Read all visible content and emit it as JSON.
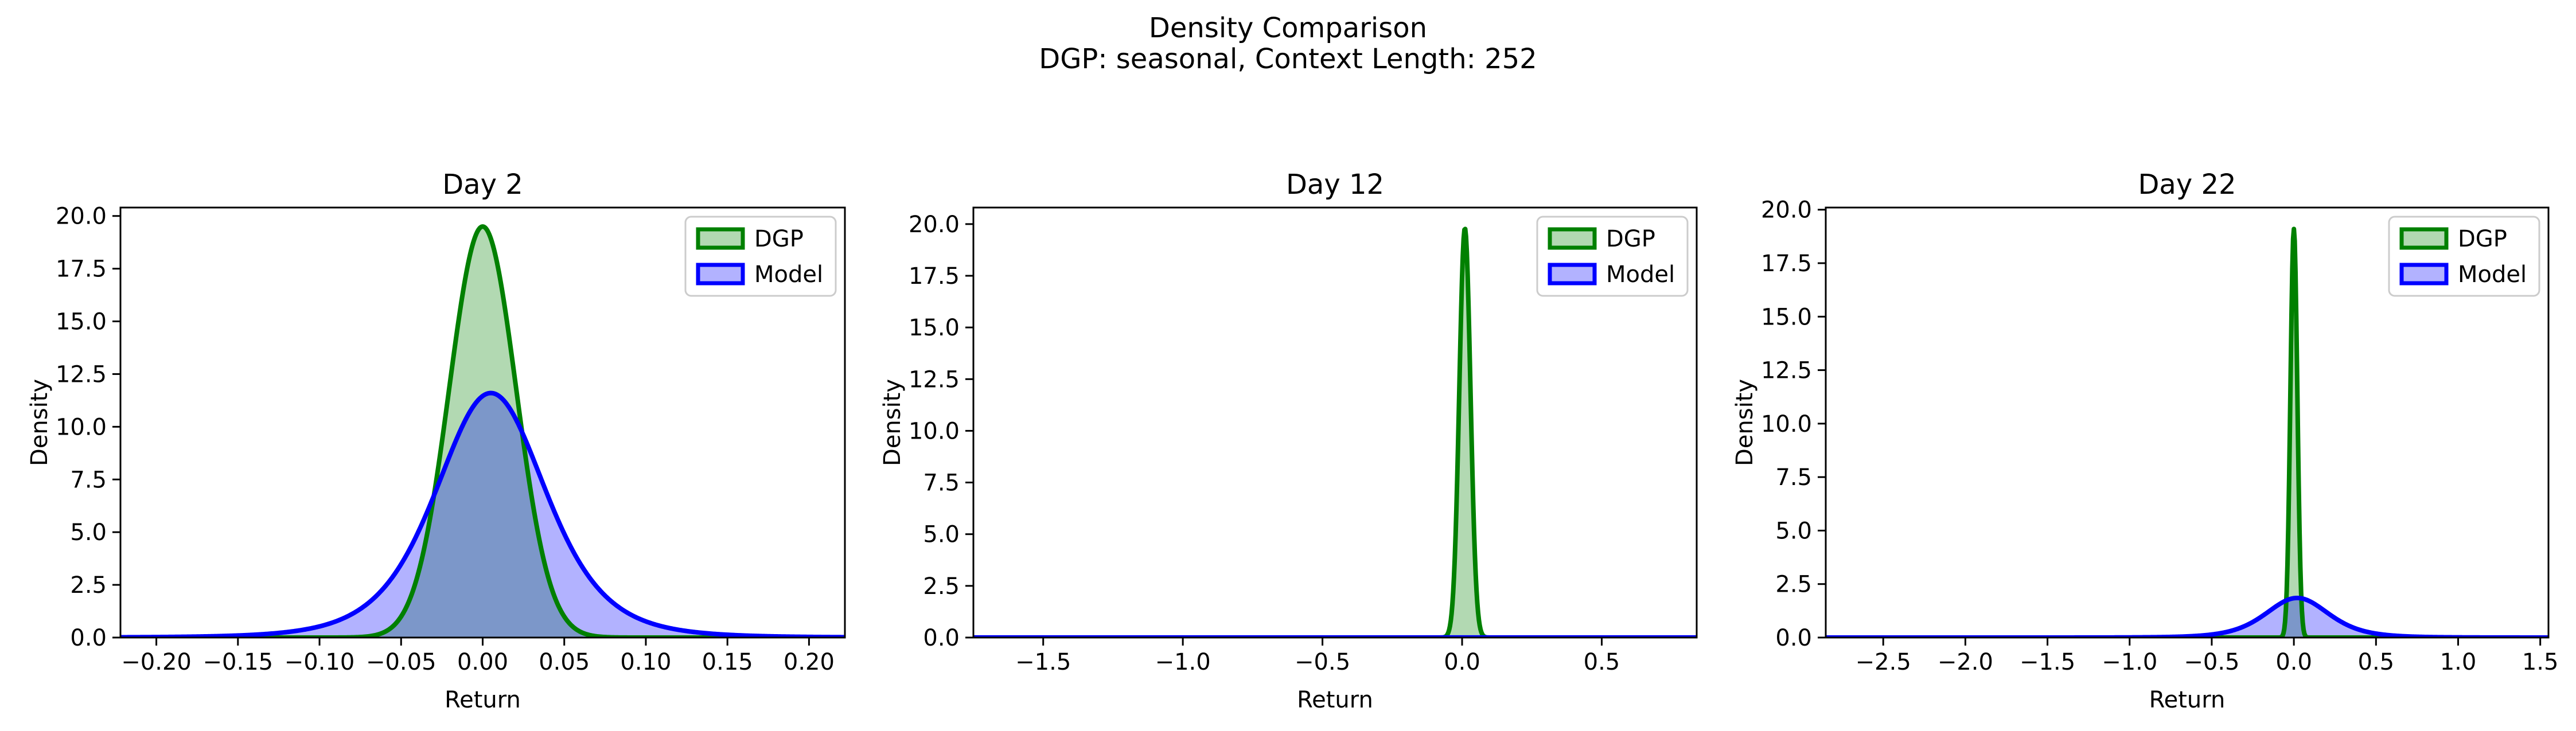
{
  "figure": {
    "title": "Density Comparison",
    "subtitle": "DGP: seasonal, Context Length: 252"
  },
  "colors": {
    "dgp_line": "#008000",
    "dgp_fill": "#b2d8b2",
    "model_line": "#0000ff",
    "model_fill": "#b2b2ff",
    "overlap_fill": "#7f99c8"
  },
  "chart_data": [
    {
      "type": "area",
      "title": "Day 2",
      "xlabel": "Return",
      "ylabel": "Density",
      "xlim": [
        -0.222,
        0.222
      ],
      "ylim": [
        0,
        20.4
      ],
      "xticks": [
        -0.2,
        -0.15,
        -0.1,
        -0.05,
        0.0,
        0.05,
        0.1,
        0.15,
        0.2
      ],
      "xtick_labels": [
        "−0.20",
        "−0.15",
        "−0.10",
        "−0.05",
        "0.00",
        "0.05",
        "0.10",
        "0.15",
        "0.20"
      ],
      "yticks": [
        0,
        2.5,
        5,
        7.5,
        10,
        12.5,
        15,
        17.5,
        20
      ],
      "ytick_labels": [
        "0.0",
        "2.5",
        "5.0",
        "7.5",
        "10.0",
        "12.5",
        "15.0",
        "17.5",
        "20.0"
      ],
      "legend": {
        "position": "top-right",
        "entries": [
          "DGP",
          "Model"
        ]
      },
      "series": [
        {
          "name": "DGP",
          "peak_x": 0.0,
          "peak_density": 19.5,
          "std": 0.0205
        },
        {
          "name": "Model",
          "peak_x": 0.005,
          "peak_density": 11.6,
          "std": 0.035,
          "tail": "heavy"
        }
      ]
    },
    {
      "type": "area",
      "title": "Day 12",
      "xlabel": "Return",
      "ylabel": "Density",
      "xlim": [
        -1.75,
        0.84
      ],
      "ylim": [
        0,
        20.8
      ],
      "xticks": [
        -1.5,
        -1.0,
        -0.5,
        0.0,
        0.5
      ],
      "xtick_labels": [
        "−1.5",
        "−1.0",
        "−0.5",
        "0.0",
        "0.5"
      ],
      "yticks": [
        0,
        2.5,
        5,
        7.5,
        10,
        12.5,
        15,
        17.5,
        20
      ],
      "ytick_labels": [
        "0.0",
        "2.5",
        "5.0",
        "7.5",
        "10.0",
        "12.5",
        "15.0",
        "17.5",
        "20.0"
      ],
      "legend": {
        "position": "top-right",
        "entries": [
          "DGP",
          "Model"
        ]
      },
      "series": [
        {
          "name": "DGP",
          "peak_x": 0.01,
          "peak_density": 19.8,
          "std": 0.02
        },
        {
          "name": "Model",
          "peak_x": 0.0,
          "peak_density": 0.004,
          "std": 40
        }
      ]
    },
    {
      "type": "area",
      "title": "Day 22",
      "xlabel": "Return",
      "ylabel": "Density",
      "xlim": [
        -2.85,
        1.55
      ],
      "ylim": [
        0,
        20.1
      ],
      "xticks": [
        -2.5,
        -2.0,
        -1.5,
        -1.0,
        -0.5,
        0.0,
        0.5,
        1.0,
        1.5
      ],
      "xtick_labels": [
        "−2.5",
        "−2.0",
        "−1.5",
        "−1.0",
        "−0.5",
        "0.0",
        "0.5",
        "1.0",
        "1.5"
      ],
      "yticks": [
        0,
        2.5,
        5,
        7.5,
        10,
        12.5,
        15,
        17.5,
        20
      ],
      "ytick_labels": [
        "0.0",
        "2.5",
        "5.0",
        "7.5",
        "10.0",
        "12.5",
        "15.0",
        "17.5",
        "20.0"
      ],
      "legend": {
        "position": "top-right",
        "entries": [
          "DGP",
          "Model"
        ]
      },
      "series": [
        {
          "name": "DGP",
          "peak_x": 0.0,
          "peak_density": 19.1,
          "std": 0.021
        },
        {
          "name": "Model",
          "peak_x": 0.02,
          "peak_density": 1.85,
          "std": 0.2,
          "tail": "heavy"
        }
      ]
    }
  ]
}
